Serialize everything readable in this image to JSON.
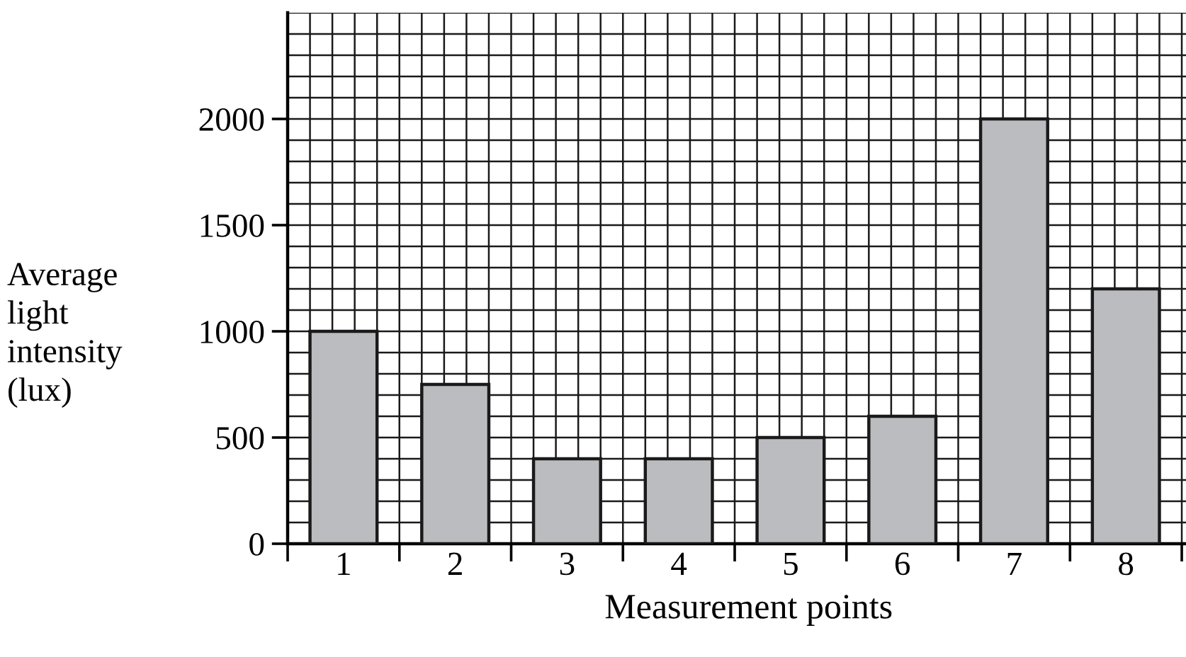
{
  "chart_data": {
    "type": "bar",
    "xlabel": "Measurement points",
    "ylabel": "Average\nlight\nintensity\n(lux)",
    "categories": [
      "1",
      "2",
      "3",
      "4",
      "5",
      "6",
      "7",
      "8"
    ],
    "values": [
      1000,
      750,
      400,
      400,
      500,
      600,
      2000,
      1200
    ],
    "color": "#bbbcbf",
    "ylim": [
      0,
      2500
    ],
    "yticks": [
      0,
      {
        "value": 100,
        "label": null
      },
      {
        "value": 200,
        "label": null
      },
      {
        "value": 300,
        "label": null
      },
      {
        "value": 400,
        "label": null
      },
      500,
      {
        "value": 600,
        "label": null
      },
      {
        "value": 700,
        "label": null
      },
      {
        "value": 800,
        "label": null
      },
      {
        "value": 900,
        "label": null
      },
      1000,
      {
        "value": 1100,
        "label": null
      },
      {
        "value": 1200,
        "label": null
      },
      {
        "value": 1300,
        "label": null
      },
      {
        "value": 1400,
        "label": null
      },
      1500,
      {
        "value": 1600,
        "label": null
      },
      {
        "value": 1700,
        "label": null
      },
      {
        "value": 1800,
        "label": null
      },
      {
        "value": 1900,
        "label": null
      },
      2000,
      {
        "value": 2100,
        "label": null
      },
      {
        "value": 2200,
        "label": null
      },
      {
        "value": 2300,
        "label": null
      },
      {
        "value": 2400,
        "label": null
      },
      {
        "value": 2500,
        "label": null
      }
    ],
    "grid": true
  }
}
